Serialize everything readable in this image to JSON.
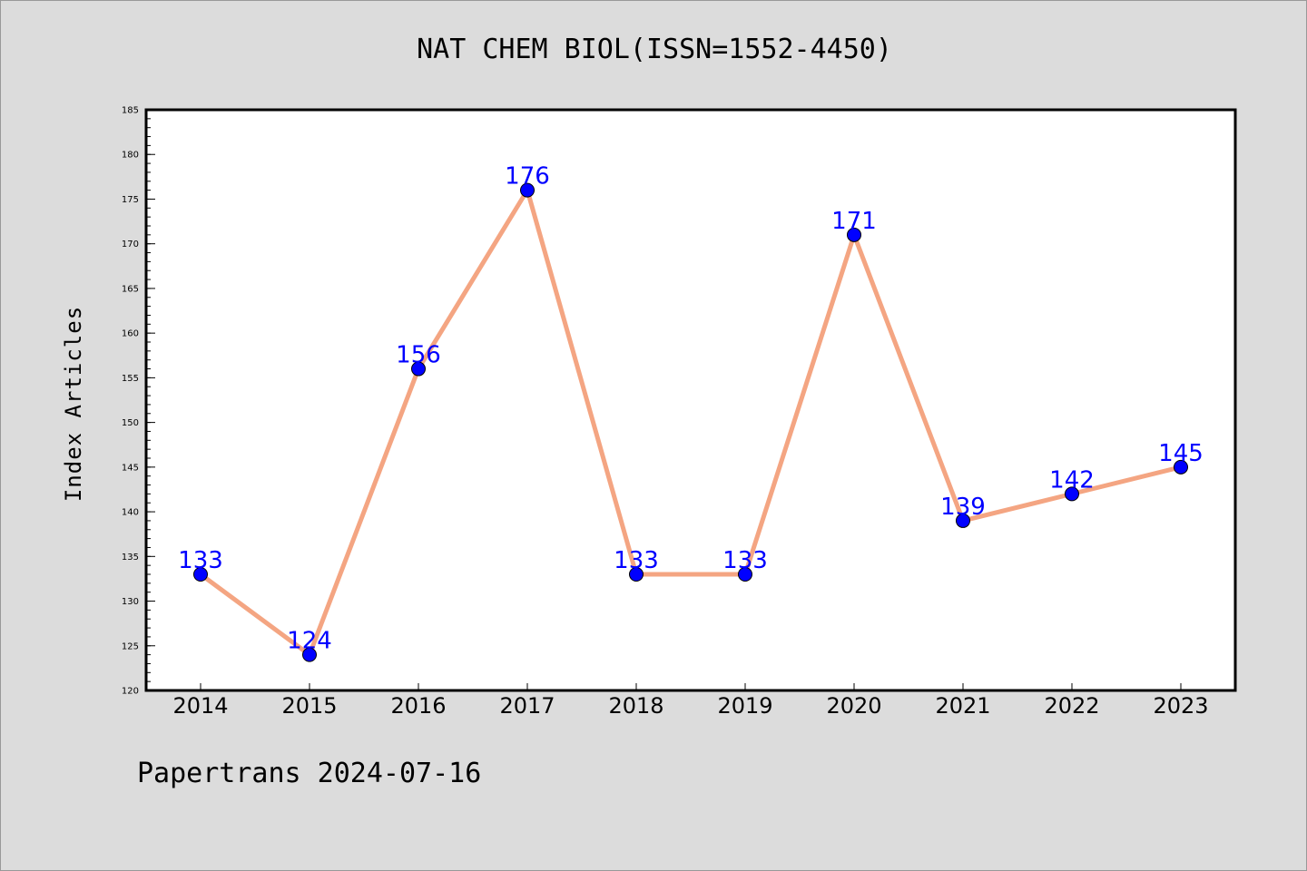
{
  "chart_data": {
    "type": "line",
    "title": "NAT CHEM BIOL(ISSN=1552-4450)",
    "xlabel": "",
    "ylabel": "Index Articles",
    "categories": [
      "2014",
      "2015",
      "2016",
      "2017",
      "2018",
      "2019",
      "2020",
      "2021",
      "2022",
      "2023"
    ],
    "series": [
      {
        "values": [
          133,
          124,
          156,
          176,
          133,
          133,
          171,
          139,
          142,
          145
        ]
      }
    ],
    "ylim": [
      120,
      185
    ],
    "y_ticks": [
      120,
      125,
      130,
      135,
      140,
      145,
      150,
      155,
      160,
      165,
      170,
      175,
      180,
      185
    ],
    "y_minor_step": 1,
    "grid": false,
    "data_labels": true,
    "colors": {
      "line": "#f4a582",
      "marker": "#0000ff",
      "label": "#0000ff",
      "plot_background": "#ffffff",
      "figure_background": "#dcdcdc"
    }
  },
  "footer": {
    "watermark": "Papertrans 2024-07-16"
  }
}
